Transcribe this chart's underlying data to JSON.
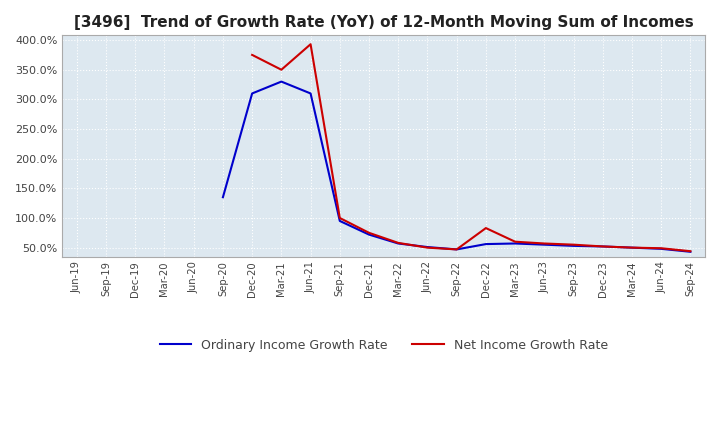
{
  "title": "[3496]  Trend of Growth Rate (YoY) of 12-Month Moving Sum of Incomes",
  "title_fontsize": 11,
  "background_color": "#ffffff",
  "plot_bg_color": "#dde8f0",
  "grid_color": "#ffffff",
  "ordinary_color": "#0000cc",
  "net_color": "#cc0000",
  "legend_ordinary": "Ordinary Income Growth Rate",
  "legend_net": "Net Income Growth Rate",
  "ylim": [
    35,
    408
  ],
  "yticks": [
    50,
    100,
    150,
    200,
    250,
    300,
    350,
    400
  ],
  "xtick_labels": [
    "Jun-19",
    "Sep-19",
    "Dec-19",
    "Mar-20",
    "Jun-20",
    "Sep-20",
    "Dec-20",
    "Mar-21",
    "Jun-21",
    "Sep-21",
    "Dec-21",
    "Mar-22",
    "Jun-22",
    "Sep-22",
    "Dec-22",
    "Mar-23",
    "Jun-23",
    "Sep-23",
    "Dec-23",
    "Mar-24",
    "Jun-24",
    "Sep-24"
  ],
  "ordinary_values": [
    null,
    null,
    null,
    null,
    null,
    135,
    310,
    330,
    310,
    95,
    72,
    57,
    51,
    47,
    56,
    57,
    55,
    53,
    52,
    50,
    48,
    43
  ],
  "net_values": [
    null,
    null,
    null,
    null,
    null,
    null,
    375,
    350,
    393,
    100,
    75,
    58,
    50,
    47,
    83,
    60,
    57,
    55,
    52,
    50,
    49,
    44
  ]
}
